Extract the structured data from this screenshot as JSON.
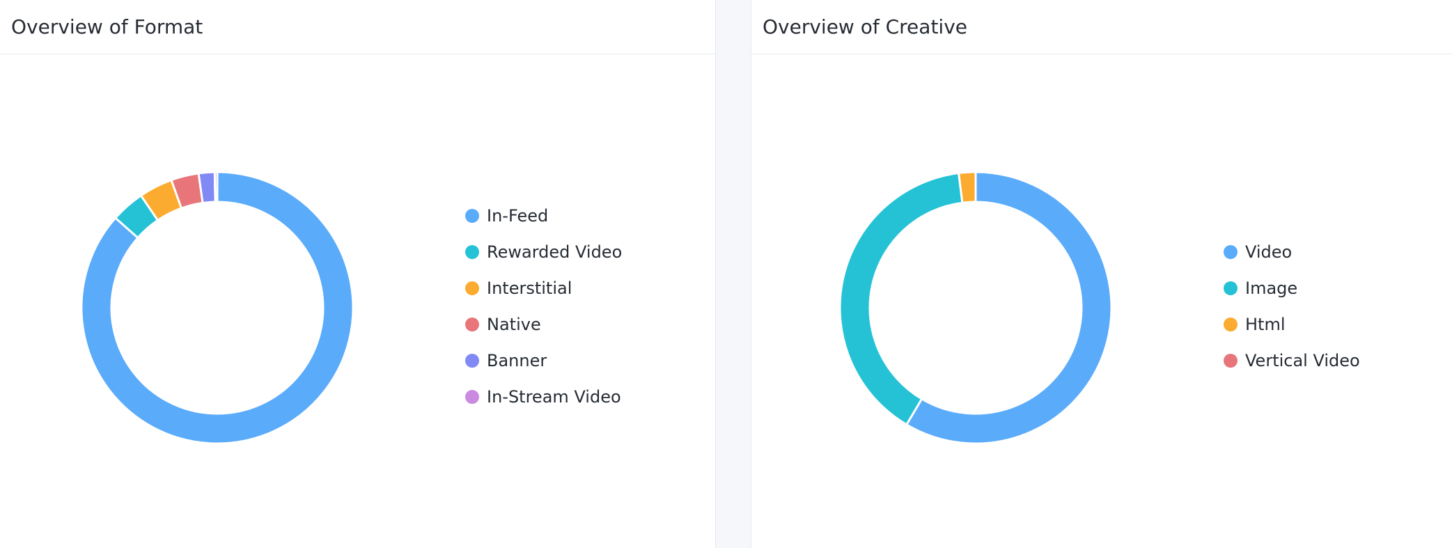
{
  "panels": {
    "format": {
      "title": "Overview of Format"
    },
    "creative": {
      "title": "Overview of Creative"
    }
  },
  "chart_data": [
    {
      "type": "pie",
      "title": "Overview of Format",
      "donut": true,
      "legend_position": "right",
      "slices": [
        {
          "label": "In-Feed",
          "value": 86.5,
          "color": "#5aabfa"
        },
        {
          "label": "Rewarded Video",
          "value": 4.0,
          "color": "#25c2d6"
        },
        {
          "label": "Interstitial",
          "value": 4.0,
          "color": "#fbab2f"
        },
        {
          "label": "Native",
          "value": 3.3,
          "color": "#e8757a"
        },
        {
          "label": "Banner",
          "value": 1.9,
          "color": "#8189f4"
        },
        {
          "label": "In-Stream Video",
          "value": 0.3,
          "color": "#c98ae0"
        }
      ]
    },
    {
      "type": "pie",
      "title": "Overview of Creative",
      "donut": true,
      "legend_position": "right",
      "slices": [
        {
          "label": "Video",
          "value": 58.5,
          "color": "#5aabfa"
        },
        {
          "label": "Image",
          "value": 39.5,
          "color": "#25c2d6"
        },
        {
          "label": "Html",
          "value": 2.0,
          "color": "#fbab2f"
        },
        {
          "label": "Vertical Video",
          "value": 0.0,
          "color": "#e8757a"
        }
      ]
    }
  ]
}
